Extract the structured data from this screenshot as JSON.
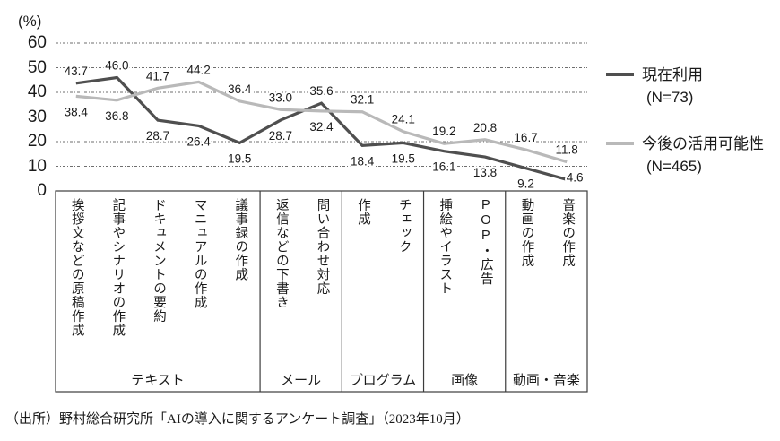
{
  "chart_data": {
    "type": "line",
    "title": "",
    "ylabel": "(%)",
    "ylim": [
      0,
      60
    ],
    "yticks": [
      0,
      10,
      20,
      30,
      40,
      50,
      60
    ],
    "grid": "horizontal-dashed",
    "legend_position": "right",
    "categories": [
      "挨拶文などの原稿作成",
      "記事やシナリオの作成",
      "ドキュメントの要約",
      "マニュアルの作成",
      "議事録の作成",
      "返信などの下書き",
      "問い合わせ対応",
      "作成",
      "チェック",
      "挿絵やイラスト",
      "POP・広告",
      "動画の作成",
      "音楽の作成"
    ],
    "groups": [
      {
        "label": "テキスト",
        "span": 5
      },
      {
        "label": "メール",
        "span": 2
      },
      {
        "label": "プログラム",
        "span": 2
      },
      {
        "label": "画像",
        "span": 2
      },
      {
        "label": "動画・音楽",
        "span": 2
      }
    ],
    "series": [
      {
        "name": "現在利用",
        "n_label": "(N=73)",
        "color": "#4f4f4f",
        "values": [
          43.7,
          46.0,
          28.7,
          26.4,
          19.5,
          28.7,
          35.6,
          18.4,
          19.5,
          16.1,
          13.8,
          9.2,
          4.6
        ]
      },
      {
        "name": "今後の活用可能性",
        "n_label": "(N=465)",
        "color": "#b9b9b9",
        "values": [
          38.4,
          36.8,
          41.7,
          44.2,
          36.4,
          33.0,
          32.4,
          32.1,
          24.1,
          19.2,
          20.8,
          16.7,
          11.8
        ]
      }
    ],
    "source": "（出所）野村総合研究所「AIの導入に関するアンケート調査」（2023年10月）"
  }
}
